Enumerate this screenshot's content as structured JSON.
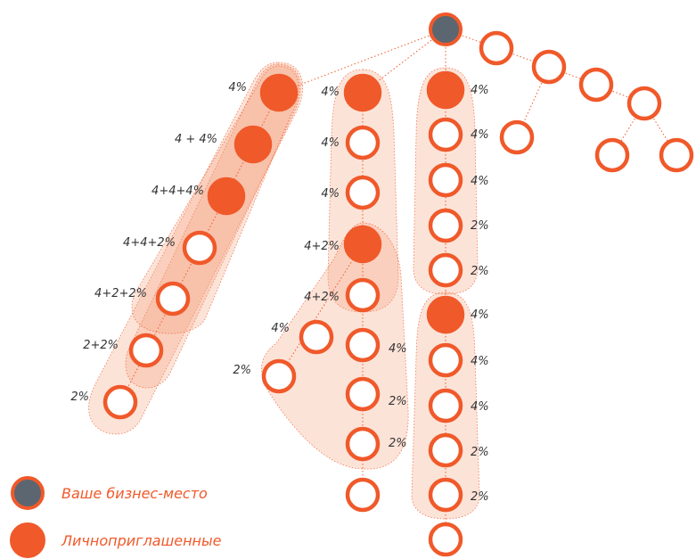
{
  "colors": {
    "accent": "#f0592a",
    "root_fill": "#5b6670",
    "hull_fill": "#f5a27e",
    "line": "#f0592a",
    "label": "#333333"
  },
  "legend": {
    "business_place": "Ваше бизнес-место",
    "personal_invites": "Личноприглашенные"
  },
  "labels": {
    "a1": "4%",
    "a2": "4 + 4%",
    "a3": "4+4+4%",
    "a4": "4+4+2%",
    "a5": "4+2+2%",
    "a6": "2+2%",
    "a7": "2%",
    "b1": "4%",
    "b2": "4%",
    "b3": "4%",
    "b4": "4+2%",
    "b5": "4+2%",
    "b6": "4%",
    "b7": "2%",
    "b8": "2%",
    "sb1": "4%",
    "sb2": "2%",
    "c1": "4%",
    "c2": "4%",
    "c3": "4%",
    "c4": "2%",
    "c5": "2%",
    "c6": "4%",
    "c7": "4%",
    "c8": "4%",
    "c9": "2%",
    "c10": "2%"
  }
}
